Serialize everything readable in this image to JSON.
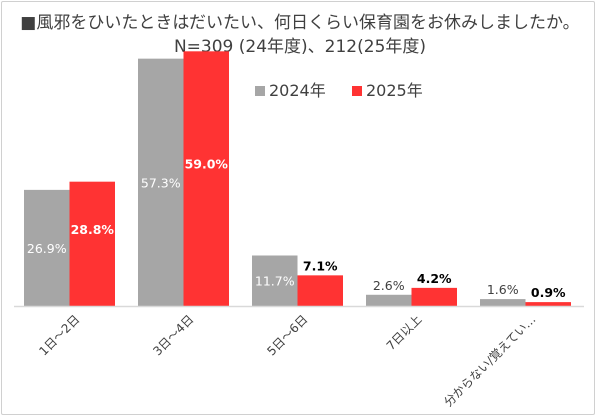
{
  "title_line1": "■風邪をひいたときはだいたい、何日くらい保育園をお休みしましたか。",
  "title_line2": "N=309 (24年度)、212(25年度)",
  "colors": {
    "s2024": "#a6a6a6",
    "s2025": "#ff3333",
    "axis": "#d9d9d9",
    "text": "#404040"
  },
  "chart_data": {
    "type": "bar",
    "categories": [
      "1日～2日",
      "3日～4日",
      "5日～6日",
      "7日以上",
      "分からない/覚えてい…"
    ],
    "series": [
      {
        "name": "2024年",
        "values": [
          26.9,
          57.3,
          11.7,
          2.6,
          1.6
        ],
        "labels": [
          "26.9%",
          "57.3%",
          "11.7%",
          "2.6%",
          "1.6%"
        ]
      },
      {
        "name": "2025年",
        "values": [
          28.8,
          59.0,
          7.1,
          4.2,
          0.9
        ],
        "labels": [
          "28.8%",
          "59.0%",
          "7.1%",
          "4.2%",
          "0.9%"
        ]
      }
    ],
    "ylim": [
      0,
      60
    ],
    "legend_position": "top-right",
    "grid": false
  }
}
